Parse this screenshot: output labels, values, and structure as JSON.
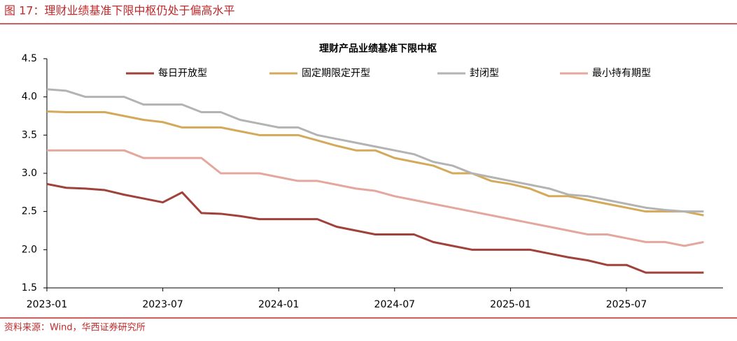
{
  "header_title": "图 17：理财业绩基准下限中枢仍处于偏高水平",
  "source": "资料来源：Wind，华西证券研究所",
  "chart_data": {
    "type": "line",
    "title": "理财产品业绩基准下限中枢",
    "categories": [
      "2023-01",
      null,
      null,
      null,
      null,
      null,
      "2023-07",
      null,
      null,
      null,
      null,
      null,
      "2024-01",
      null,
      null,
      null,
      null,
      null,
      "2024-07",
      null,
      null,
      null,
      null,
      null,
      "2025-01",
      null,
      null,
      null,
      null,
      null,
      "2025-07",
      null,
      null,
      null,
      null
    ],
    "series": [
      {
        "name": "每日开放型",
        "color": "#A0413A",
        "values": [
          2.86,
          2.81,
          2.8,
          2.78,
          2.72,
          2.67,
          2.62,
          2.75,
          2.48,
          2.47,
          2.44,
          2.4,
          2.4,
          2.4,
          2.4,
          2.3,
          2.25,
          2.2,
          2.2,
          2.2,
          2.1,
          2.05,
          2.0,
          2.0,
          2.0,
          2.0,
          1.95,
          1.9,
          1.86,
          1.8,
          1.8,
          1.7,
          1.7,
          1.7,
          1.7
        ]
      },
      {
        "name": "固定期限定开型",
        "color": "#D4AA5A",
        "values": [
          3.81,
          3.8,
          3.8,
          3.8,
          3.75,
          3.7,
          3.67,
          3.6,
          3.6,
          3.6,
          3.55,
          3.5,
          3.5,
          3.5,
          3.43,
          3.36,
          3.3,
          3.3,
          3.2,
          3.15,
          3.1,
          3.0,
          3.0,
          2.9,
          2.86,
          2.8,
          2.7,
          2.7,
          2.65,
          2.6,
          2.55,
          2.5,
          2.5,
          2.5,
          2.45
        ]
      },
      {
        "name": "封闭型",
        "color": "#B3B3B3",
        "values": [
          4.1,
          4.08,
          4.0,
          4.0,
          4.0,
          3.9,
          3.9,
          3.9,
          3.8,
          3.8,
          3.7,
          3.65,
          3.6,
          3.6,
          3.5,
          3.45,
          3.4,
          3.35,
          3.3,
          3.25,
          3.15,
          3.1,
          3.0,
          2.95,
          2.9,
          2.85,
          2.8,
          2.72,
          2.7,
          2.65,
          2.6,
          2.55,
          2.52,
          2.5,
          2.5
        ]
      },
      {
        "name": "最小持有期型",
        "color": "#E4A79E",
        "values": [
          3.3,
          3.3,
          3.3,
          3.3,
          3.3,
          3.2,
          3.2,
          3.2,
          3.2,
          3.0,
          3.0,
          3.0,
          2.95,
          2.9,
          2.9,
          2.85,
          2.8,
          2.77,
          2.7,
          2.65,
          2.6,
          2.55,
          2.5,
          2.45,
          2.4,
          2.35,
          2.3,
          2.25,
          2.2,
          2.2,
          2.15,
          2.1,
          2.1,
          2.05,
          2.1
        ]
      }
    ],
    "ylim": [
      1.5,
      4.5
    ],
    "yticks": [
      {
        "value": 1.5,
        "label": "1.5"
      },
      {
        "value": 2,
        "label": "2.0"
      },
      {
        "value": 2.5,
        "label": "2.5"
      },
      {
        "value": 3,
        "label": "3.0"
      },
      {
        "value": 3.5,
        "label": "3.5"
      },
      {
        "value": 4,
        "label": "4.0"
      },
      {
        "value": 4.5,
        "label": "4.5"
      }
    ],
    "grid": false,
    "legend": "top"
  }
}
